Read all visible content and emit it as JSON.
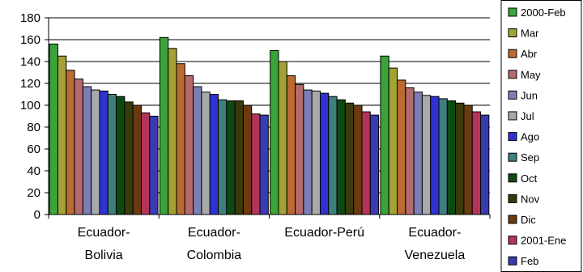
{
  "chart_data": {
    "type": "bar",
    "title": "",
    "xlabel": "",
    "ylabel": "",
    "ylim": [
      0,
      180
    ],
    "yticks": [
      0,
      20,
      40,
      60,
      80,
      100,
      120,
      140,
      160,
      180
    ],
    "grid": true,
    "legend_position": "right",
    "categories": [
      [
        "Ecuador-",
        "Bolivia"
      ],
      [
        "Ecuador-",
        "Colombia"
      ],
      [
        "Ecuador-Perú"
      ],
      [
        "Ecuador-",
        "Venezuela"
      ]
    ],
    "series": [
      {
        "name": "2000-Feb",
        "color": "#3aa43a",
        "values": [
          156,
          162,
          150,
          145
        ]
      },
      {
        "name": "Mar",
        "color": "#a3a335",
        "values": [
          145,
          152,
          140,
          134
        ]
      },
      {
        "name": "Abr",
        "color": "#bb6a32",
        "values": [
          132,
          138,
          127,
          123
        ]
      },
      {
        "name": "May",
        "color": "#b56b6b",
        "values": [
          124,
          127,
          119,
          116
        ]
      },
      {
        "name": "Jun",
        "color": "#7c7fb5",
        "values": [
          117,
          117,
          114,
          112
        ]
      },
      {
        "name": "Jul",
        "color": "#a9a9a9",
        "values": [
          114,
          112,
          113,
          109
        ]
      },
      {
        "name": "Ago",
        "color": "#2f31d3",
        "values": [
          113,
          110,
          111,
          108
        ]
      },
      {
        "name": "Sep",
        "color": "#3f7f7f",
        "values": [
          110,
          105,
          108,
          106
        ]
      },
      {
        "name": "Oct",
        "color": "#0d4a12",
        "values": [
          108,
          104,
          105,
          104
        ]
      },
      {
        "name": "Nov",
        "color": "#3a3a0c",
        "values": [
          103,
          104,
          102,
          102
        ]
      },
      {
        "name": "Dic",
        "color": "#6b3a10",
        "values": [
          100,
          100,
          100,
          100
        ]
      },
      {
        "name": "2001-Ene",
        "color": "#b3335a",
        "values": [
          93,
          92,
          94,
          94
        ]
      },
      {
        "name": "Feb",
        "color": "#3a3ab3",
        "values": [
          90,
          91,
          91,
          91
        ]
      }
    ]
  }
}
